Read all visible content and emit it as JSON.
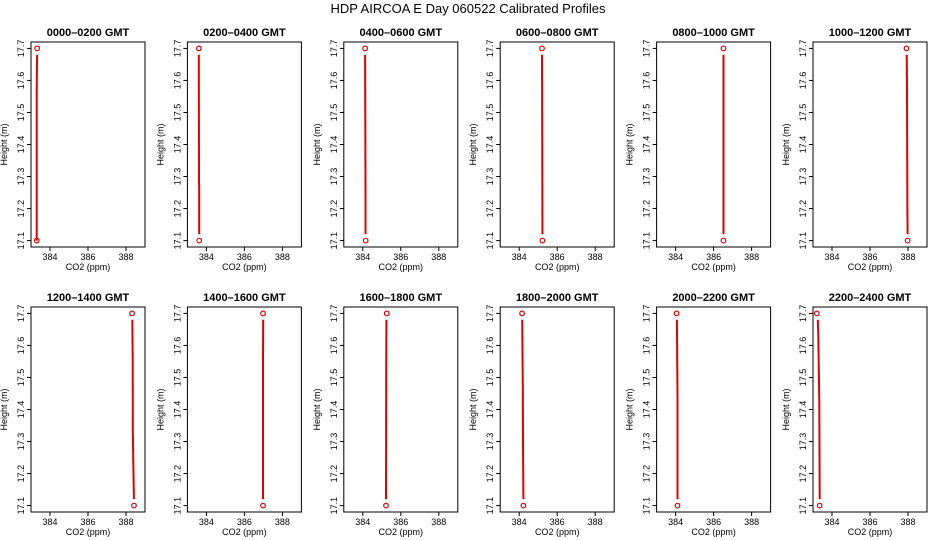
{
  "figure": {
    "title": "HDP  AIRCOA E  Day 060522  Calibrated Profiles"
  },
  "chart_data": [
    {
      "type": "line",
      "title": "0000–0200 GMT",
      "xlabel": "CO2 (ppm)",
      "ylabel": "Height (m)",
      "xlim": [
        383,
        389
      ],
      "ylim": [
        17.08,
        17.72
      ],
      "xticks": [
        "384",
        "386",
        "388"
      ],
      "yticks": [
        "17.1",
        "17.2",
        "17.3",
        "17.4",
        "17.5",
        "17.6",
        "17.7"
      ],
      "points": [
        [
          383.3,
          17.1
        ],
        [
          383.32,
          17.7
        ]
      ],
      "profile": [
        [
          383.3,
          17.1
        ],
        [
          383.3,
          17.57
        ],
        [
          383.32,
          17.68
        ]
      ],
      "color": "#e00000"
    },
    {
      "type": "line",
      "title": "0200–0400 GMT",
      "xlabel": "CO2 (ppm)",
      "ylabel": "Height (m)",
      "xlim": [
        383,
        389
      ],
      "ylim": [
        17.08,
        17.72
      ],
      "xticks": [
        "384",
        "386",
        "388"
      ],
      "yticks": [
        "17.1",
        "17.2",
        "17.3",
        "17.4",
        "17.5",
        "17.6",
        "17.7"
      ],
      "points": [
        [
          383.62,
          17.1
        ],
        [
          383.6,
          17.7
        ]
      ],
      "profile": [
        [
          383.62,
          17.12
        ],
        [
          383.62,
          17.27
        ],
        [
          383.61,
          17.28
        ],
        [
          383.6,
          17.64
        ],
        [
          383.6,
          17.68
        ]
      ],
      "color": "#e00000"
    },
    {
      "type": "line",
      "title": "0400–0600 GMT",
      "xlabel": "CO2 (ppm)",
      "ylabel": "Height (m)",
      "xlim": [
        383,
        389
      ],
      "ylim": [
        17.08,
        17.72
      ],
      "xticks": [
        "384",
        "386",
        "388"
      ],
      "yticks": [
        "17.1",
        "17.2",
        "17.3",
        "17.4",
        "17.5",
        "17.6",
        "17.7"
      ],
      "points": [
        [
          384.15,
          17.1
        ],
        [
          384.12,
          17.7
        ]
      ],
      "profile": [
        [
          384.14,
          17.12
        ],
        [
          384.14,
          17.24
        ],
        [
          384.13,
          17.48
        ],
        [
          384.12,
          17.68
        ]
      ],
      "color": "#e00000"
    },
    {
      "type": "line",
      "title": "0600–0800 GMT",
      "xlabel": "CO2 (ppm)",
      "ylabel": "Height (m)",
      "xlim": [
        383,
        389
      ],
      "ylim": [
        17.08,
        17.72
      ],
      "xticks": [
        "384",
        "386",
        "388"
      ],
      "yticks": [
        "17.1",
        "17.2",
        "17.3",
        "17.4",
        "17.5",
        "17.6",
        "17.7"
      ],
      "points": [
        [
          385.22,
          17.1
        ],
        [
          385.2,
          17.7
        ]
      ],
      "profile": [
        [
          385.22,
          17.12
        ],
        [
          385.22,
          17.17
        ],
        [
          385.21,
          17.47
        ],
        [
          385.2,
          17.68
        ]
      ],
      "color": "#e00000"
    },
    {
      "type": "line",
      "title": "0800–1000 GMT",
      "xlabel": "CO2 (ppm)",
      "ylabel": "Height (m)",
      "xlim": [
        383,
        389
      ],
      "ylim": [
        17.08,
        17.72
      ],
      "xticks": [
        "384",
        "386",
        "388"
      ],
      "yticks": [
        "17.1",
        "17.2",
        "17.3",
        "17.4",
        "17.5",
        "17.6",
        "17.7"
      ],
      "points": [
        [
          386.52,
          17.1
        ],
        [
          386.52,
          17.7
        ]
      ],
      "profile": [
        [
          386.52,
          17.12
        ],
        [
          386.52,
          17.3
        ],
        [
          386.52,
          17.68
        ]
      ],
      "color": "#e00000"
    },
    {
      "type": "line",
      "title": "1000–1200 GMT",
      "xlabel": "CO2 (ppm)",
      "ylabel": "Height (m)",
      "xlim": [
        383,
        389
      ],
      "ylim": [
        17.08,
        17.72
      ],
      "xticks": [
        "384",
        "386",
        "388"
      ],
      "yticks": [
        "17.1",
        "17.2",
        "17.3",
        "17.4",
        "17.5",
        "17.6",
        "17.7"
      ],
      "points": [
        [
          387.98,
          17.1
        ],
        [
          387.92,
          17.7
        ]
      ],
      "profile": [
        [
          387.98,
          17.12
        ],
        [
          387.97,
          17.19
        ],
        [
          387.96,
          17.37
        ],
        [
          387.95,
          17.58
        ],
        [
          387.93,
          17.68
        ]
      ],
      "color": "#e00000"
    },
    {
      "type": "line",
      "title": "1200–1400 GMT",
      "xlabel": "CO2 (ppm)",
      "ylabel": "Height (m)",
      "xlim": [
        383,
        389
      ],
      "ylim": [
        17.08,
        17.72
      ],
      "xticks": [
        "384",
        "386",
        "388"
      ],
      "yticks": [
        "17.1",
        "17.2",
        "17.3",
        "17.4",
        "17.5",
        "17.6",
        "17.7"
      ],
      "points": [
        [
          388.42,
          17.1
        ],
        [
          388.32,
          17.7
        ]
      ],
      "profile": [
        [
          388.42,
          17.12
        ],
        [
          388.41,
          17.14
        ],
        [
          388.36,
          17.33
        ],
        [
          388.35,
          17.56
        ],
        [
          388.33,
          17.68
        ]
      ],
      "color": "#e00000"
    },
    {
      "type": "line",
      "title": "1400–1600 GMT",
      "xlabel": "CO2 (ppm)",
      "ylabel": "Height (m)",
      "xlim": [
        383,
        389
      ],
      "ylim": [
        17.08,
        17.72
      ],
      "xticks": [
        "384",
        "386",
        "388"
      ],
      "yticks": [
        "17.1",
        "17.2",
        "17.3",
        "17.4",
        "17.5",
        "17.6",
        "17.7"
      ],
      "points": [
        [
          386.98,
          17.1
        ],
        [
          386.98,
          17.7
        ]
      ],
      "profile": [
        [
          386.98,
          17.12
        ],
        [
          386.98,
          17.56
        ],
        [
          386.99,
          17.68
        ]
      ],
      "color": "#e00000"
    },
    {
      "type": "line",
      "title": "1600–1800 GMT",
      "xlabel": "CO2 (ppm)",
      "ylabel": "Height (m)",
      "xlim": [
        383,
        389
      ],
      "ylim": [
        17.08,
        17.72
      ],
      "xticks": [
        "384",
        "386",
        "388"
      ],
      "yticks": [
        "17.1",
        "17.2",
        "17.3",
        "17.4",
        "17.5",
        "17.6",
        "17.7"
      ],
      "points": [
        [
          385.22,
          17.1
        ],
        [
          385.26,
          17.7
        ]
      ],
      "profile": [
        [
          385.22,
          17.12
        ],
        [
          385.23,
          17.5
        ],
        [
          385.24,
          17.68
        ]
      ],
      "color": "#e00000"
    },
    {
      "type": "line",
      "title": "1800–2000 GMT",
      "xlabel": "CO2 (ppm)",
      "ylabel": "Height (m)",
      "xlim": [
        383,
        389
      ],
      "ylim": [
        17.08,
        17.72
      ],
      "xticks": [
        "384",
        "386",
        "388"
      ],
      "yticks": [
        "17.1",
        "17.2",
        "17.3",
        "17.4",
        "17.5",
        "17.6",
        "17.7"
      ],
      "points": [
        [
          384.22,
          17.1
        ],
        [
          384.15,
          17.7
        ]
      ],
      "profile": [
        [
          384.22,
          17.12
        ],
        [
          384.2,
          17.3
        ],
        [
          384.19,
          17.47
        ],
        [
          384.16,
          17.68
        ]
      ],
      "color": "#e00000"
    },
    {
      "type": "line",
      "title": "2000–2200 GMT",
      "xlabel": "CO2 (ppm)",
      "ylabel": "Height (m)",
      "xlim": [
        383,
        389
      ],
      "ylim": [
        17.08,
        17.72
      ],
      "xticks": [
        "384",
        "386",
        "388"
      ],
      "yticks": [
        "17.1",
        "17.2",
        "17.3",
        "17.4",
        "17.5",
        "17.6",
        "17.7"
      ],
      "points": [
        [
          384.1,
          17.1
        ],
        [
          384.05,
          17.7
        ]
      ],
      "profile": [
        [
          384.1,
          17.12
        ],
        [
          384.1,
          17.44
        ],
        [
          384.07,
          17.68
        ]
      ],
      "color": "#e00000"
    },
    {
      "type": "line",
      "title": "2200–2400 GMT",
      "xlabel": "CO2 (ppm)",
      "ylabel": "Height (m)",
      "xlim": [
        383,
        389
      ],
      "ylim": [
        17.08,
        17.72
      ],
      "xticks": [
        "384",
        "386",
        "388"
      ],
      "yticks": [
        "17.1",
        "17.2",
        "17.3",
        "17.4",
        "17.5",
        "17.6",
        "17.7"
      ],
      "points": [
        [
          383.35,
          17.1
        ],
        [
          383.2,
          17.7
        ]
      ],
      "profile": [
        [
          383.35,
          17.12
        ],
        [
          383.33,
          17.42
        ],
        [
          383.28,
          17.63
        ],
        [
          383.25,
          17.68
        ]
      ],
      "color": "#e00000"
    }
  ]
}
